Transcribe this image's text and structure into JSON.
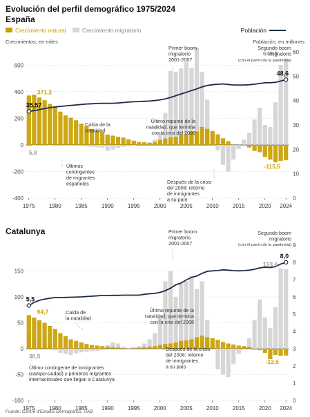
{
  "header": {
    "title": "Evolución del perfil demográfico 1975/2024",
    "subtitle": "España",
    "legend_natural": "Crecimiento natural",
    "legend_migratory": "Crecimiento migratorio",
    "legend_population": "Población",
    "left_axis_label": "Crecimientos, en miles",
    "right_axis_label": "Población, en millones"
  },
  "colors": {
    "natural": "#c9a000",
    "natural_callout": "#c9a000",
    "migratory": "#d6d6d6",
    "migratory_callout": "#9a9a9a",
    "population": "#1c2b45",
    "zero_line": "#222222",
    "grid": "#cccccc"
  },
  "chart_data": [
    {
      "type": "bar",
      "title": "España",
      "years": [
        1975,
        1976,
        1977,
        1978,
        1979,
        1980,
        1981,
        1982,
        1983,
        1984,
        1985,
        1986,
        1987,
        1988,
        1989,
        1990,
        1991,
        1992,
        1993,
        1994,
        1995,
        1996,
        1997,
        1998,
        1999,
        2000,
        2001,
        2002,
        2003,
        2004,
        2005,
        2006,
        2007,
        2008,
        2009,
        2010,
        2011,
        2012,
        2013,
        2014,
        2015,
        2016,
        2017,
        2018,
        2019,
        2020,
        2021,
        2022,
        2023,
        2024
      ],
      "series": [
        {
          "name": "Crecimiento natural",
          "values": [
            371.2,
            378,
            356,
            336,
            308,
            285,
            250,
            222,
            205,
            185,
            160,
            140,
            120,
            108,
            95,
            78,
            70,
            62,
            55,
            42,
            32,
            22,
            20,
            15,
            22,
            38,
            48,
            58,
            62,
            78,
            80,
            98,
            102,
            135,
            120,
            105,
            80,
            50,
            28,
            0,
            -2,
            -5,
            -20,
            -45,
            -55,
            -90,
            -110,
            -130,
            -120,
            -115.5
          ]
        },
        {
          "name": "Crecimiento migratorio",
          "values": [
            5.8,
            -3,
            -6,
            -5,
            -4,
            -9,
            -8,
            -6,
            -5,
            -7,
            -9,
            -12,
            -15,
            -18,
            -20,
            -45,
            -35,
            -22,
            -15,
            -10,
            -5,
            5,
            10,
            20,
            40,
            95,
            240,
            555,
            550,
            575,
            620,
            580,
            730,
            550,
            340,
            80,
            -40,
            -150,
            -200,
            -110,
            -30,
            40,
            90,
            190,
            280,
            150,
            135,
            320,
            600,
            649.8
          ]
        }
      ],
      "line_series": {
        "name": "Población",
        "values": [
          35.57,
          35.9,
          36.3,
          36.7,
          37.1,
          37.4,
          37.6,
          37.8,
          38.0,
          38.2,
          38.4,
          38.6,
          38.7,
          38.8,
          38.9,
          38.9,
          38.9,
          39.0,
          39.2,
          39.4,
          39.5,
          39.6,
          39.7,
          39.8,
          40.0,
          40.3,
          40.7,
          41.3,
          42.0,
          42.7,
          43.4,
          44.1,
          44.8,
          45.6,
          46.2,
          46.5,
          46.7,
          46.8,
          46.6,
          46.4,
          46.4,
          46.4,
          46.5,
          46.7,
          47.0,
          47.3,
          47.3,
          47.5,
          48.0,
          48.6
        ]
      },
      "ylim": [
        -400,
        700
      ],
      "y2lim": [
        0,
        60
      ],
      "y_ticks": [
        "-400",
        "-200",
        "0",
        "200",
        "400",
        "600"
      ],
      "y2_ticks": [
        "0",
        "10",
        "20",
        "30",
        "40",
        "50",
        "60"
      ],
      "x_ticks": [
        "1975",
        "1980",
        "1985",
        "1990",
        "1995",
        "2000",
        "2005",
        "2010",
        "2015",
        "2020",
        "2024"
      ],
      "value_labels": {
        "natural_start": "371,2",
        "migratory_start": "5,8",
        "natural_end": "-115,5",
        "migratory_end": "649,8",
        "population_start": "35,57",
        "population_end": "48,6"
      },
      "annotations": [
        "Primer boom\nmigratorio\n2001-2007",
        "Segundo boom\nmigratorio",
        "(con el parón de la pandemia)",
        "Caída de la\nnatalidad",
        "Último repunte de la\nnatalidad, que termina\ncon la crisi del 2008",
        "Últimos\ncontingentes\nde migrantes\nespañoles",
        "Después de la crisis\ndel 2008: retorno\nde inmigrantes\na su país"
      ]
    },
    {
      "type": "bar",
      "title": "Catalunya",
      "years": [
        1975,
        1976,
        1977,
        1978,
        1979,
        1980,
        1981,
        1982,
        1983,
        1984,
        1985,
        1986,
        1987,
        1988,
        1989,
        1990,
        1991,
        1992,
        1993,
        1994,
        1995,
        1996,
        1997,
        1998,
        1999,
        2000,
        2001,
        2002,
        2003,
        2004,
        2005,
        2006,
        2007,
        2008,
        2009,
        2010,
        2011,
        2012,
        2013,
        2014,
        2015,
        2016,
        2017,
        2018,
        2019,
        2020,
        2021,
        2022,
        2023,
        2024
      ],
      "series": [
        {
          "name": "Crecimiento natural",
          "values": [
            64.7,
            60,
            55,
            50,
            44,
            38,
            30,
            24,
            18,
            15,
            12,
            9,
            7,
            6,
            5,
            4,
            3,
            2,
            1,
            0,
            1,
            2,
            3,
            4,
            5,
            7,
            9,
            10,
            12,
            15,
            16,
            18,
            22,
            25,
            22,
            20,
            17,
            13,
            10,
            8,
            6,
            5,
            3,
            -2,
            -3,
            -8,
            -20,
            -12,
            -14,
            -13.5
          ]
        },
        {
          "name": "Crecimiento migratorio",
          "values": [
            30.5,
            22,
            15,
            10,
            5,
            -3,
            -8,
            -10,
            -12,
            -9,
            -7,
            -6,
            -5,
            -4,
            -3,
            7,
            12,
            10,
            4,
            2,
            3,
            5,
            10,
            18,
            30,
            60,
            130,
            150,
            100,
            125,
            130,
            140,
            115,
            130,
            55,
            5,
            -40,
            -50,
            -55,
            -30,
            -10,
            5,
            20,
            55,
            95,
            60,
            40,
            80,
            155,
            153.6
          ]
        }
      ],
      "line_series": {
        "name": "Población",
        "values": [
          5.5,
          5.68,
          5.8,
          5.87,
          5.92,
          5.96,
          5.96,
          5.97,
          5.98,
          5.99,
          6.0,
          6.02,
          6.04,
          6.06,
          6.08,
          6.08,
          6.09,
          6.09,
          6.1,
          6.1,
          6.1,
          6.1,
          6.15,
          6.18,
          6.2,
          6.26,
          6.36,
          6.5,
          6.7,
          6.8,
          6.98,
          7.13,
          7.21,
          7.36,
          7.48,
          7.51,
          7.52,
          7.57,
          7.55,
          7.52,
          7.51,
          7.52,
          7.55,
          7.6,
          7.68,
          7.72,
          7.7,
          7.75,
          7.9,
          8.0
        ]
      },
      "ylim": [
        -100,
        200
      ],
      "y2lim": [
        0,
        9
      ],
      "y_ticks": [
        "-100",
        "-50",
        "0",
        "50",
        "100",
        "150"
      ],
      "y2_ticks": [
        "0",
        "1",
        "2",
        "3",
        "4",
        "5",
        "6",
        "7",
        "8",
        "9"
      ],
      "x_ticks": [
        "1975",
        "1980",
        "1985",
        "1990",
        "1995",
        "2000",
        "2005",
        "2010",
        "2015",
        "2020",
        "2024"
      ],
      "value_labels": {
        "natural_start": "64,7",
        "migratory_start": "30,5",
        "natural_end": "-13,5",
        "migratory_end": "153,6",
        "population_start": "5,5",
        "population_end": "8,0"
      },
      "annotations": [
        "Primer boom\nmigratorio\n2001-2007",
        "Segundo boom\nmigratorio",
        "(con el parón de la pandemia)",
        "Caída de\nla natalidad",
        "Último repunte de la\nnatalidad, que termina\ncon la crisi del 2008",
        "Último contingente de inmigrantes\n(campo-ciudad) y primeros migrantes\ninternacionales que llegan a Catalunya",
        "Después de la crisis\ndel 2008: retorno\nde inmigrantes\na su país"
      ]
    }
  ],
  "footer": {
    "source": "Fuente: Centre d'Estudis Demogràfics, UAB"
  }
}
